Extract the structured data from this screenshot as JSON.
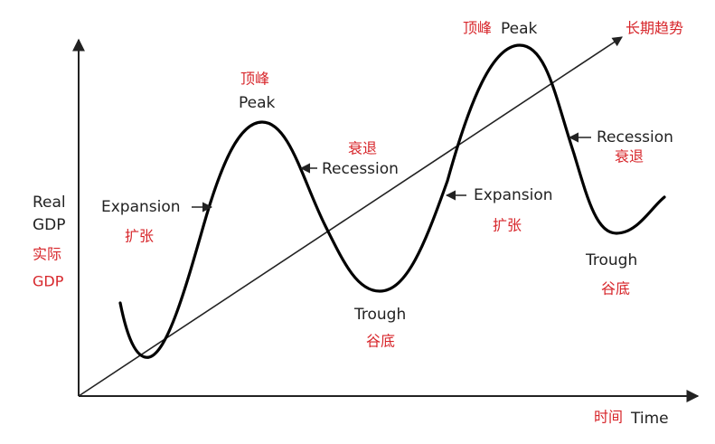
{
  "y_axis": {
    "label_lines": [
      "Real",
      "GDP"
    ],
    "label_zh_lines": [
      "实际",
      "GDP"
    ]
  },
  "x_axis": {
    "label_zh": "时间",
    "label": "Time"
  },
  "trend_label": "长期趋势",
  "phases": [
    {
      "label": "Expansion",
      "label_zh": "扩张"
    },
    {
      "label": "Peak",
      "label_zh": "顶峰"
    },
    {
      "label": "Recession",
      "label_zh": "衰退"
    },
    {
      "label": "Trough",
      "label_zh": "谷底"
    },
    {
      "label": "Expansion",
      "label_zh": "扩张"
    },
    {
      "label": "Peak",
      "label_zh": "顶峰"
    },
    {
      "label": "Recession",
      "label_zh": "衰退"
    },
    {
      "label": "Trough",
      "label_zh": "谷底"
    }
  ]
}
